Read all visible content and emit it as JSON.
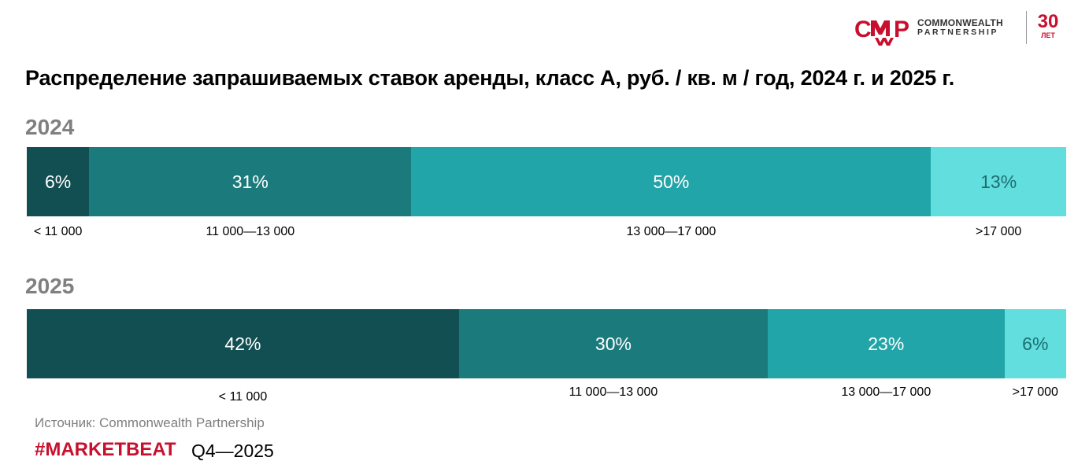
{
  "logo": {
    "mark": "CMWP",
    "name_line1": "COMMONWEALTH",
    "name_line2": "PARTNERSHIP",
    "anniversary_number": "30",
    "anniversary_word": "ЛЕТ"
  },
  "colors": {
    "seg1": "#124f52",
    "seg2": "#1b7b7c",
    "seg3": "#22a5a8",
    "seg4": "#62dede",
    "brand_red": "#c8102e",
    "year_gray": "#808080"
  },
  "chart_data": {
    "type": "bar",
    "subtype": "100% stacked horizontal",
    "title": "Распределение запрашиваемых ставок аренды, класс А, руб. / кв. м / год, 2024 г. и 2025 г.",
    "categories": [
      "< 11 000",
      "11 000—13 000",
      "13 000—17 000",
      ">17 000"
    ],
    "bars": [
      {
        "year": "2024",
        "values": [
          6,
          31,
          50,
          13
        ],
        "labels": [
          "6%",
          "31%",
          "50%",
          "13%"
        ],
        "range_labels": [
          "< 11 000",
          "11 000—13 000",
          "13 000—17 000",
          ">17 000"
        ]
      },
      {
        "year": "2025",
        "values": [
          42,
          30,
          23,
          6
        ],
        "labels": [
          "42%",
          "30%",
          "23%",
          "6%"
        ],
        "range_labels": [
          "< 11 000",
          "11 000—13 000",
          "13 000—17 000",
          ">17 000"
        ]
      }
    ]
  },
  "footer": {
    "source": "Источник: Commonwealth Partnership",
    "hashtag": "#MARKETBEAT",
    "period": "Q4—2025"
  }
}
